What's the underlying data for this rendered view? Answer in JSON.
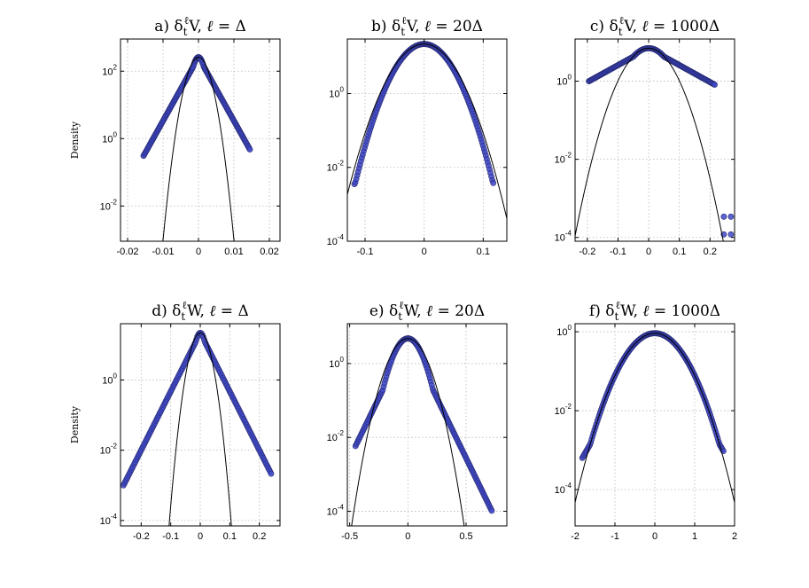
{
  "figure": {
    "marker_color": "#3f48c8",
    "marker_edge_color": "#272b73",
    "curve_color": "#000000"
  },
  "chart_data": [
    {
      "type": "scatter",
      "title": "a) δtℓV, ℓ = Δ",
      "title_parts": {
        "prefix": "a) ",
        "letter": "V",
        "ell_value": "Δ"
      },
      "ylabel": "Density",
      "xlim": [
        -0.022,
        0.023
      ],
      "yscale": "log",
      "ylim": [
        0.0009,
        900
      ],
      "grid": true,
      "xticks": [
        {
          "value": -0.02,
          "label": "-0.02"
        },
        {
          "value": -0.01,
          "label": "-0.01"
        },
        {
          "value": 0,
          "label": "0"
        },
        {
          "value": 0.01,
          "label": "0.01"
        },
        {
          "value": 0.02,
          "label": "0.02"
        }
      ],
      "yticks": [
        {
          "value": 100,
          "exp": "2"
        },
        {
          "value": 1,
          "exp": "0"
        },
        {
          "value": 0.01,
          "exp": "-2"
        }
      ],
      "empirical": {
        "peak": 260,
        "core_sigma": 0.0013,
        "tail_scale": 0.0023,
        "xrange": [
          -0.0155,
          0.0145
        ],
        "floor": 0.0015
      },
      "reference": {
        "peak": 260,
        "sigma": 0.002
      }
    },
    {
      "type": "scatter",
      "title": "b) δtℓV, ℓ = 20Δ",
      "title_parts": {
        "prefix": "b) ",
        "letter": "V",
        "ell_value": "20Δ"
      },
      "ylabel": "",
      "xlim": [
        -0.13,
        0.14
      ],
      "yscale": "log",
      "ylim": [
        0.0001,
        30
      ],
      "grid": true,
      "xticks": [
        {
          "value": -0.1,
          "label": "-0.1"
        },
        {
          "value": 0,
          "label": "0"
        },
        {
          "value": 0.1,
          "label": "0.1"
        }
      ],
      "yticks": [
        {
          "value": 1,
          "exp": "0"
        },
        {
          "value": 0.01,
          "exp": "-2"
        },
        {
          "value": 0.0001,
          "exp": "-4"
        }
      ],
      "empirical": {
        "peak": 22,
        "core_sigma": 0.028,
        "tail_scale": 0.0135,
        "xrange": [
          -0.118,
          0.117
        ],
        "floor": 0.00032
      },
      "reference": {
        "peak": 22,
        "sigma": 0.03
      }
    },
    {
      "type": "scatter",
      "title": "c) δtℓV, ℓ = 1000Δ",
      "title_parts": {
        "prefix": "c) ",
        "letter": "V",
        "ell_value": "1000Δ"
      },
      "ylabel": "",
      "xlim": [
        -0.24,
        0.28
      ],
      "yscale": "log",
      "ylim": [
        8e-05,
        12
      ],
      "grid": true,
      "xticks": [
        {
          "value": -0.2,
          "label": "-0.2"
        },
        {
          "value": -0.1,
          "label": "-0.1"
        },
        {
          "value": 0,
          "label": "0"
        },
        {
          "value": 0.1,
          "label": "0.1"
        },
        {
          "value": 0.2,
          "label": "0.2"
        }
      ],
      "yticks": [
        {
          "value": 1,
          "exp": "0"
        },
        {
          "value": 0.01,
          "exp": "-2"
        },
        {
          "value": 0.0001,
          "exp": "-4"
        }
      ],
      "empirical": {
        "peak": 7,
        "core_sigma": 0.05,
        "tail_scale": 0.1,
        "xrange": [
          -0.195,
          0.215
        ],
        "floor": 0.00012,
        "extra": [
          [
            0.245,
            0.00034
          ],
          [
            0.268,
            0.00034
          ],
          [
            0.245,
            0.00012
          ],
          [
            0.268,
            0.00012
          ]
        ]
      },
      "reference": {
        "peak": 7,
        "sigma": 0.051
      }
    },
    {
      "type": "scatter",
      "title": "d) δtℓW, ℓ = Δ",
      "title_parts": {
        "prefix": "d) ",
        "letter": "W",
        "ell_value": "Δ"
      },
      "ylabel": "Density",
      "xlim": [
        -0.27,
        0.27
      ],
      "yscale": "log",
      "ylim": [
        7e-05,
        40
      ],
      "grid": true,
      "xticks": [
        {
          "value": -0.2,
          "label": "-0.2"
        },
        {
          "value": -0.1,
          "label": "-0.1"
        },
        {
          "value": 0,
          "label": "0"
        },
        {
          "value": 0.1,
          "label": "0.1"
        },
        {
          "value": 0.2,
          "label": "0.2"
        }
      ],
      "yticks": [
        {
          "value": 1,
          "exp": "0"
        },
        {
          "value": 0.01,
          "exp": "-2"
        },
        {
          "value": 0.0001,
          "exp": "-4"
        }
      ],
      "empirical": {
        "peak": 22,
        "core_sigma": 0.014,
        "tail_scale": 0.026,
        "xrange": [
          -0.26,
          0.24
        ],
        "floor": 0.00011
      },
      "reference": {
        "peak": 22,
        "sigma": 0.021
      }
    },
    {
      "type": "scatter",
      "title": "e) δtℓW, ℓ = 20Δ",
      "title_parts": {
        "prefix": "e) ",
        "letter": "W",
        "ell_value": "20Δ"
      },
      "ylabel": "",
      "xlim": [
        -0.52,
        0.85
      ],
      "yscale": "log",
      "ylim": [
        4e-05,
        12
      ],
      "grid": true,
      "xticks": [
        {
          "value": -0.5,
          "label": "-0.5"
        },
        {
          "value": 0,
          "label": "0"
        },
        {
          "value": 0.5,
          "label": "0.5"
        }
      ],
      "yticks": [
        {
          "value": 1,
          "exp": "0"
        },
        {
          "value": 0.01,
          "exp": "-2"
        },
        {
          "value": 0.0001,
          "exp": "-4"
        }
      ],
      "empirical": {
        "peak": 4.8,
        "core_sigma": 0.085,
        "tail_scale": 0.067,
        "xrange": [
          -0.45,
          0.72
        ],
        "floor": 7e-05
      },
      "reference": {
        "peak": 4.8,
        "sigma": 0.1
      }
    },
    {
      "type": "scatter",
      "title": "f) δtℓW, ℓ = 1000Δ",
      "title_parts": {
        "prefix": "f) ",
        "letter": "W",
        "ell_value": "1000Δ"
      },
      "ylabel": "",
      "xlim": [
        -2,
        2
      ],
      "yscale": "log",
      "ylim": [
        1.2e-05,
        1.6
      ],
      "grid": true,
      "xticks": [
        {
          "value": -2,
          "label": "-2"
        },
        {
          "value": -1,
          "label": "-1"
        },
        {
          "value": 0,
          "label": "0"
        },
        {
          "value": 1,
          "label": "1"
        },
        {
          "value": 2,
          "label": "2"
        }
      ],
      "yticks": [
        {
          "value": 1,
          "exp": "0"
        },
        {
          "value": 0.01,
          "exp": "-2"
        },
        {
          "value": 0.0001,
          "exp": "-4"
        }
      ],
      "empirical": {
        "peak": 0.92,
        "core_sigma": 0.45,
        "tail_scale": 0.25,
        "xrange": [
          -1.82,
          1.72
        ],
        "floor": 3e-05
      },
      "reference": {
        "peak": 0.92,
        "sigma": 0.45
      }
    }
  ]
}
